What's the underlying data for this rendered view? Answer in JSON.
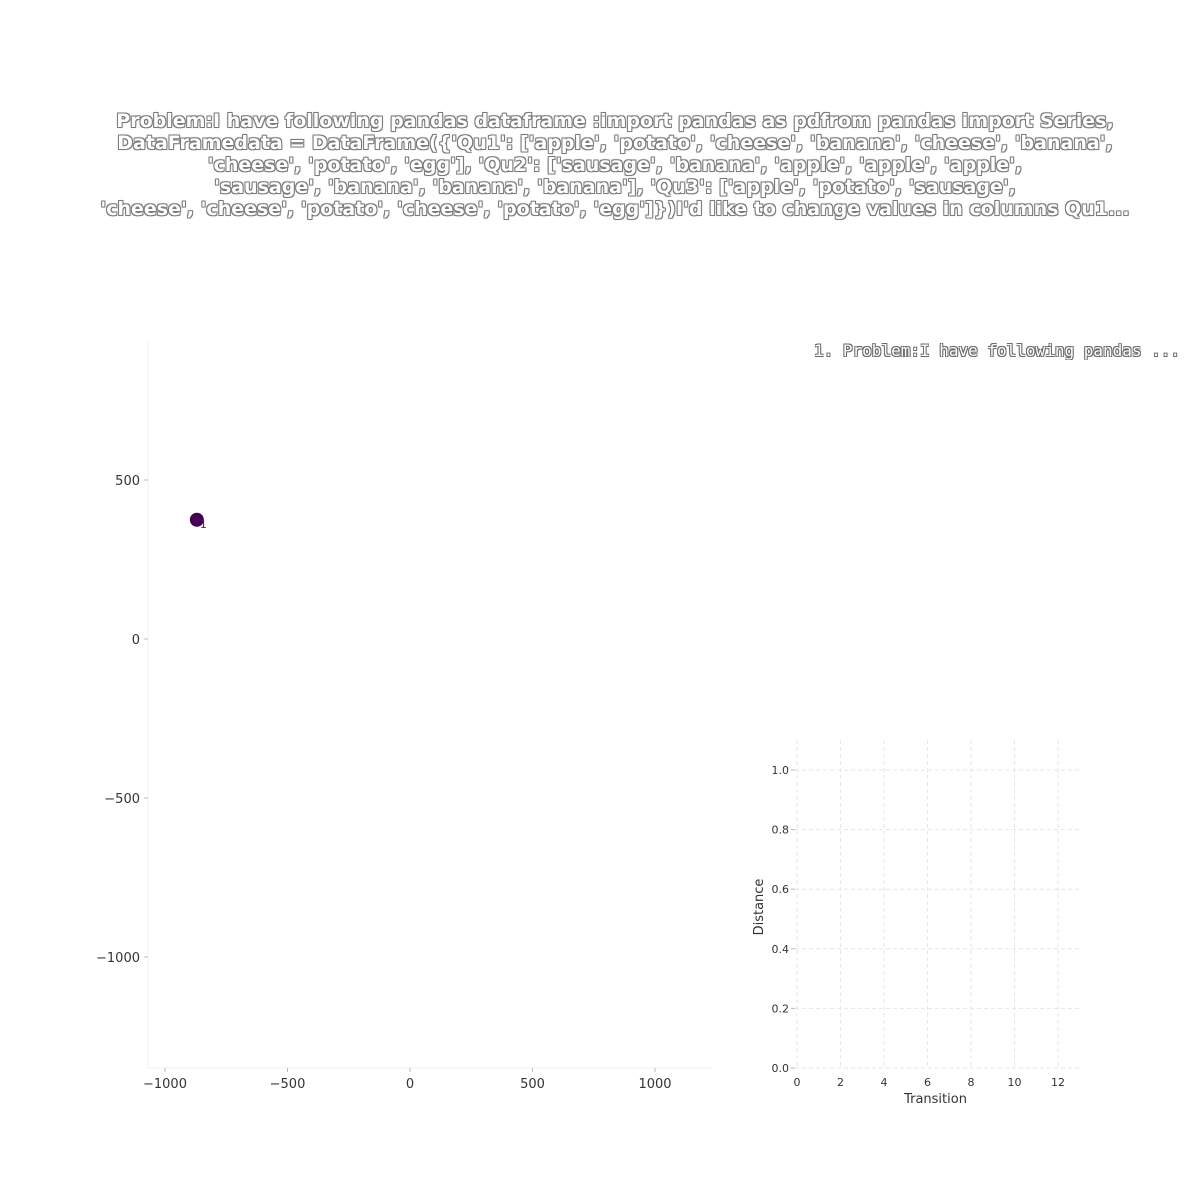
{
  "title": "Problem:I have following pandas dataframe :import pandas as pdfrom pandas import Series, DataFramedata = DataFrame({'Qu1': ['apple', 'potato', 'cheese', 'banana', 'cheese', 'banana', 'cheese', 'potato', 'egg'],              'Qu2': ['sausage', 'banana', 'apple', 'apple', 'apple', 'sausage', 'banana', 'banana', 'banana'],              'Qu3': ['apple', 'potato', 'sausage', 'cheese', 'cheese', 'potato', 'cheese', 'potato', 'egg']})I'd like to change values in columns Qu1...",
  "title_lines": [
    "Problem:I have following pandas dataframe :import pandas as pdfrom pandas import Series,",
    "DataFramedata = DataFrame({'Qu1': ['apple', 'potato', 'cheese', 'banana', 'cheese', 'banana',",
    "'cheese', 'potato', 'egg'],              'Qu2': ['sausage', 'banana', 'apple', 'apple', 'apple',",
    "'sausage', 'banana', 'banana', 'banana'],              'Qu3': ['apple', 'potato', 'sausage',",
    "'cheese', 'cheese', 'potato', 'cheese', 'potato', 'egg']})I'd like to change values in columns Qu1..."
  ],
  "legend_label": "1. Problem:I have following pandas ...",
  "chart_data": [
    {
      "type": "scatter",
      "x_ticks": [
        "−1000",
        "−500",
        "0",
        "500",
        "1000"
      ],
      "y_ticks": [
        "500",
        "0",
        "−500",
        "−1000"
      ],
      "xlim": [
        -1100,
        1250
      ],
      "ylim": [
        -1350,
        900
      ],
      "points": [
        {
          "x": -870,
          "y": 375,
          "label": "1",
          "color": "#440154"
        }
      ],
      "grid": false
    },
    {
      "type": "line",
      "xlabel": "Transition",
      "ylabel": "Distance",
      "x_ticks": [
        "0",
        "2",
        "4",
        "6",
        "8",
        "10",
        "12"
      ],
      "y_ticks": [
        "0.0",
        "0.2",
        "0.4",
        "0.6",
        "0.8",
        "1.0"
      ],
      "xlim": [
        0,
        13
      ],
      "ylim": [
        0,
        1.1
      ],
      "series": [],
      "grid": true
    }
  ]
}
